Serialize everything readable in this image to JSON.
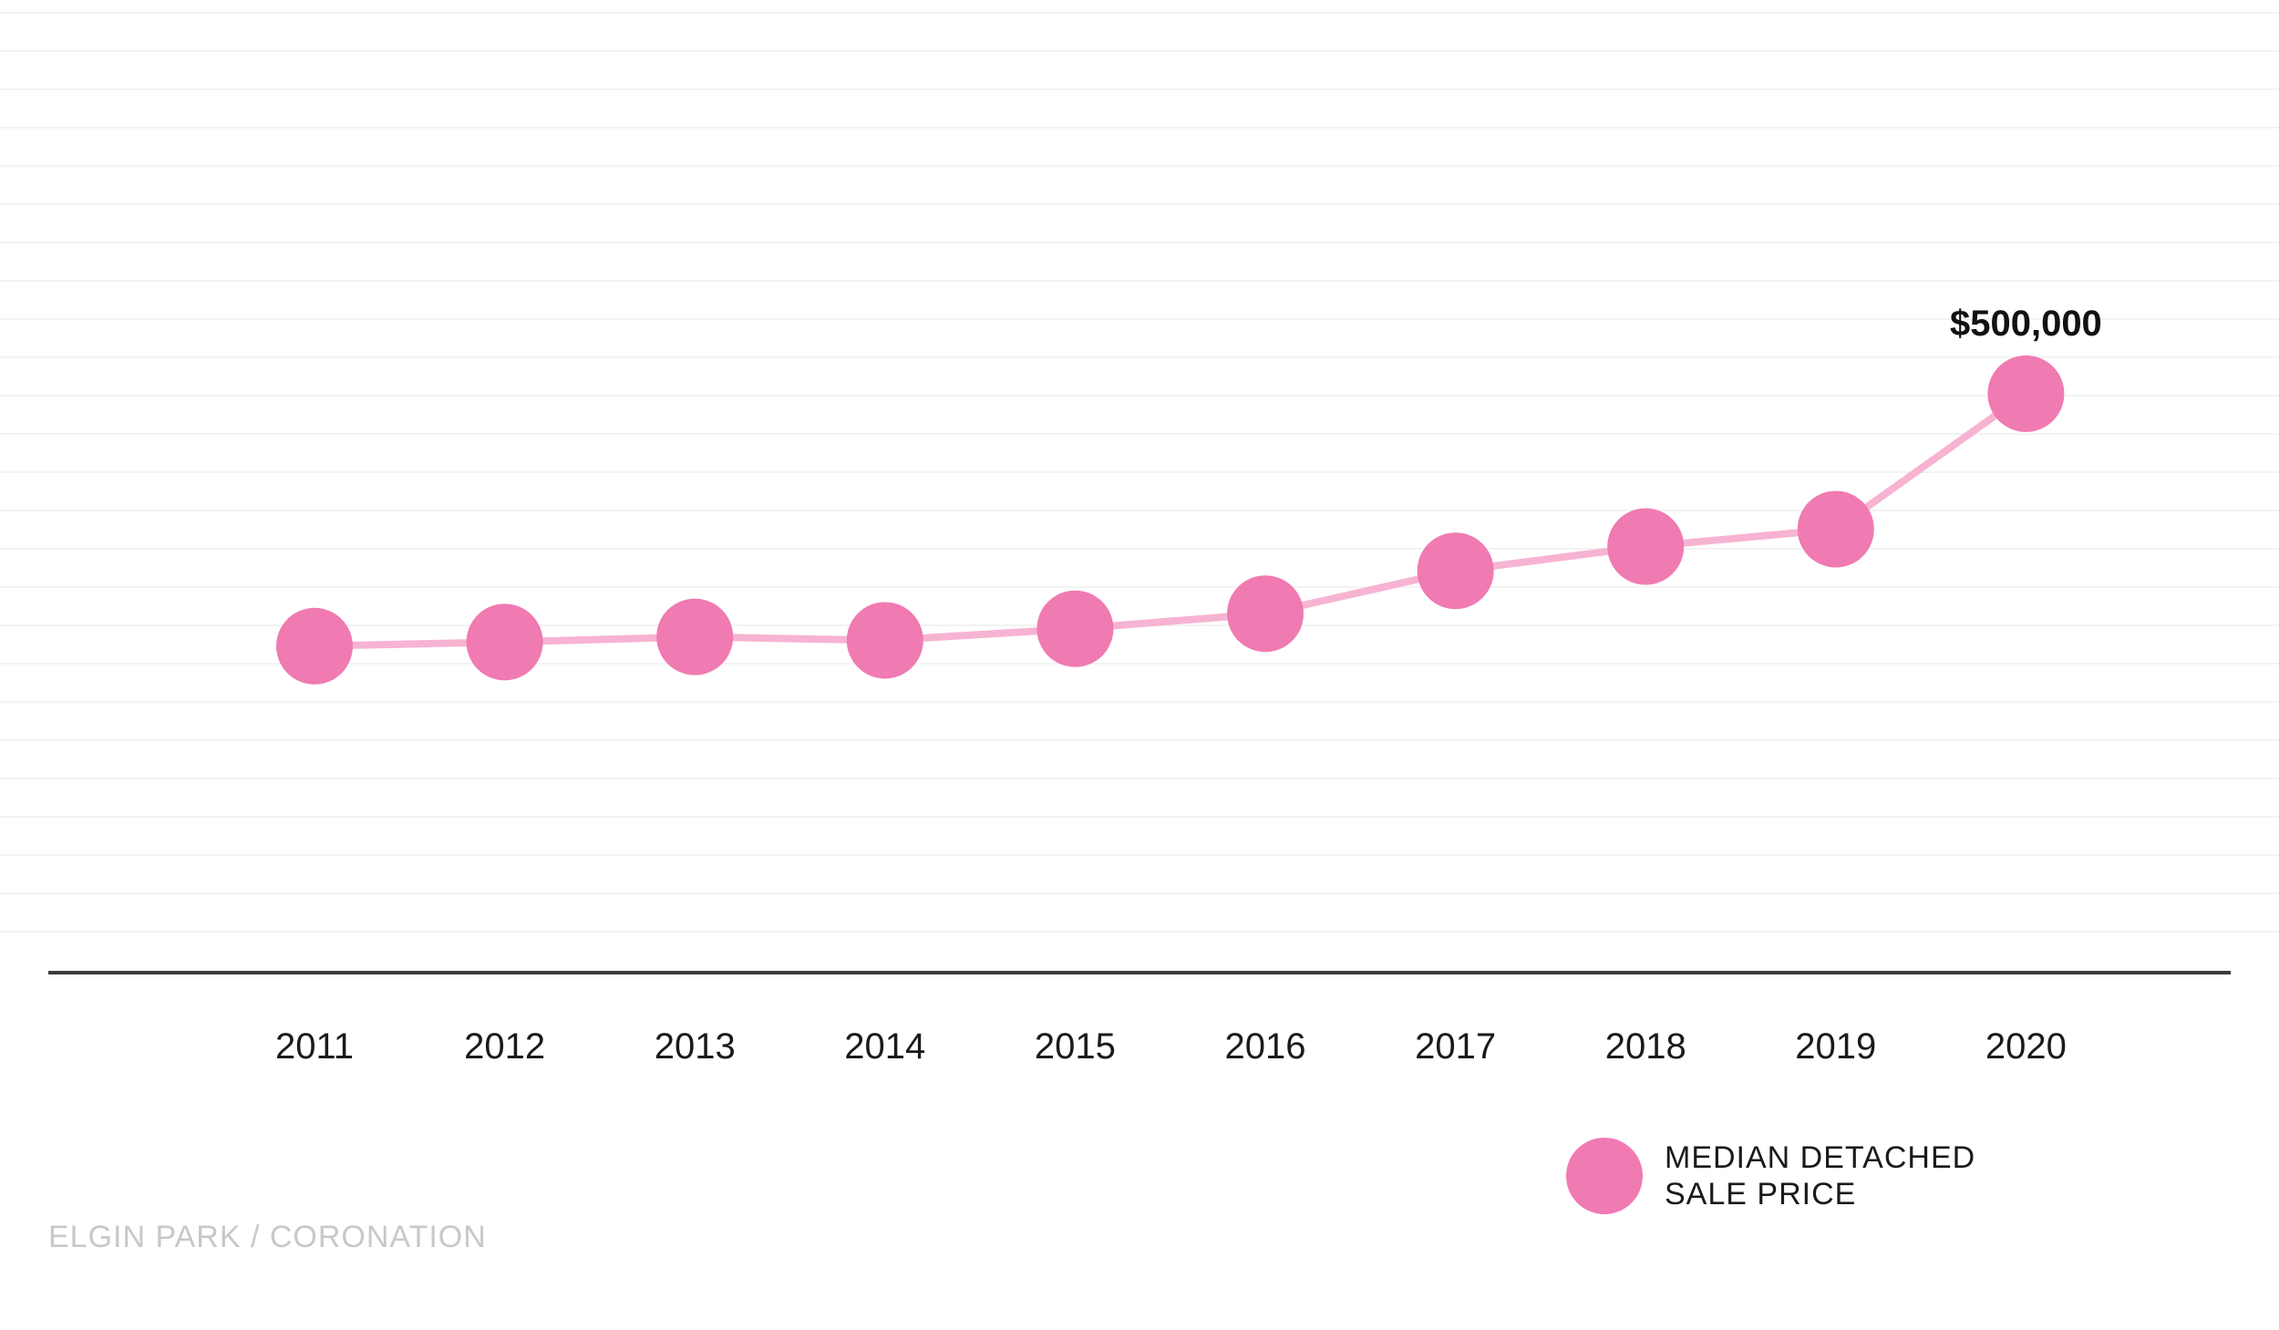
{
  "chart_data": {
    "type": "line",
    "categories": [
      "2011",
      "2012",
      "2013",
      "2014",
      "2015",
      "2016",
      "2017",
      "2018",
      "2019",
      "2020"
    ],
    "series": [
      {
        "name": "MEDIAN DETACHED SALE PRICE",
        "values": [
          282000,
          285500,
          290000,
          287000,
          297000,
          310000,
          347000,
          368000,
          383000,
          500000
        ]
      }
    ],
    "data_labels": [
      {
        "category": "2020",
        "text": "$500,000"
      }
    ],
    "ylim": [
      0,
      840000
    ],
    "grid": true,
    "legend": {
      "position": "bottom-right",
      "lines": [
        "MEDIAN DETACHED",
        "SALE PRICE"
      ]
    },
    "colors": {
      "marker": "#f07ab2",
      "line": "#f7b3d2",
      "axis": "#3a3a3a",
      "grid": "#f3f3f3"
    }
  },
  "footer": {
    "label": "ELGIN PARK / CORONATION"
  }
}
